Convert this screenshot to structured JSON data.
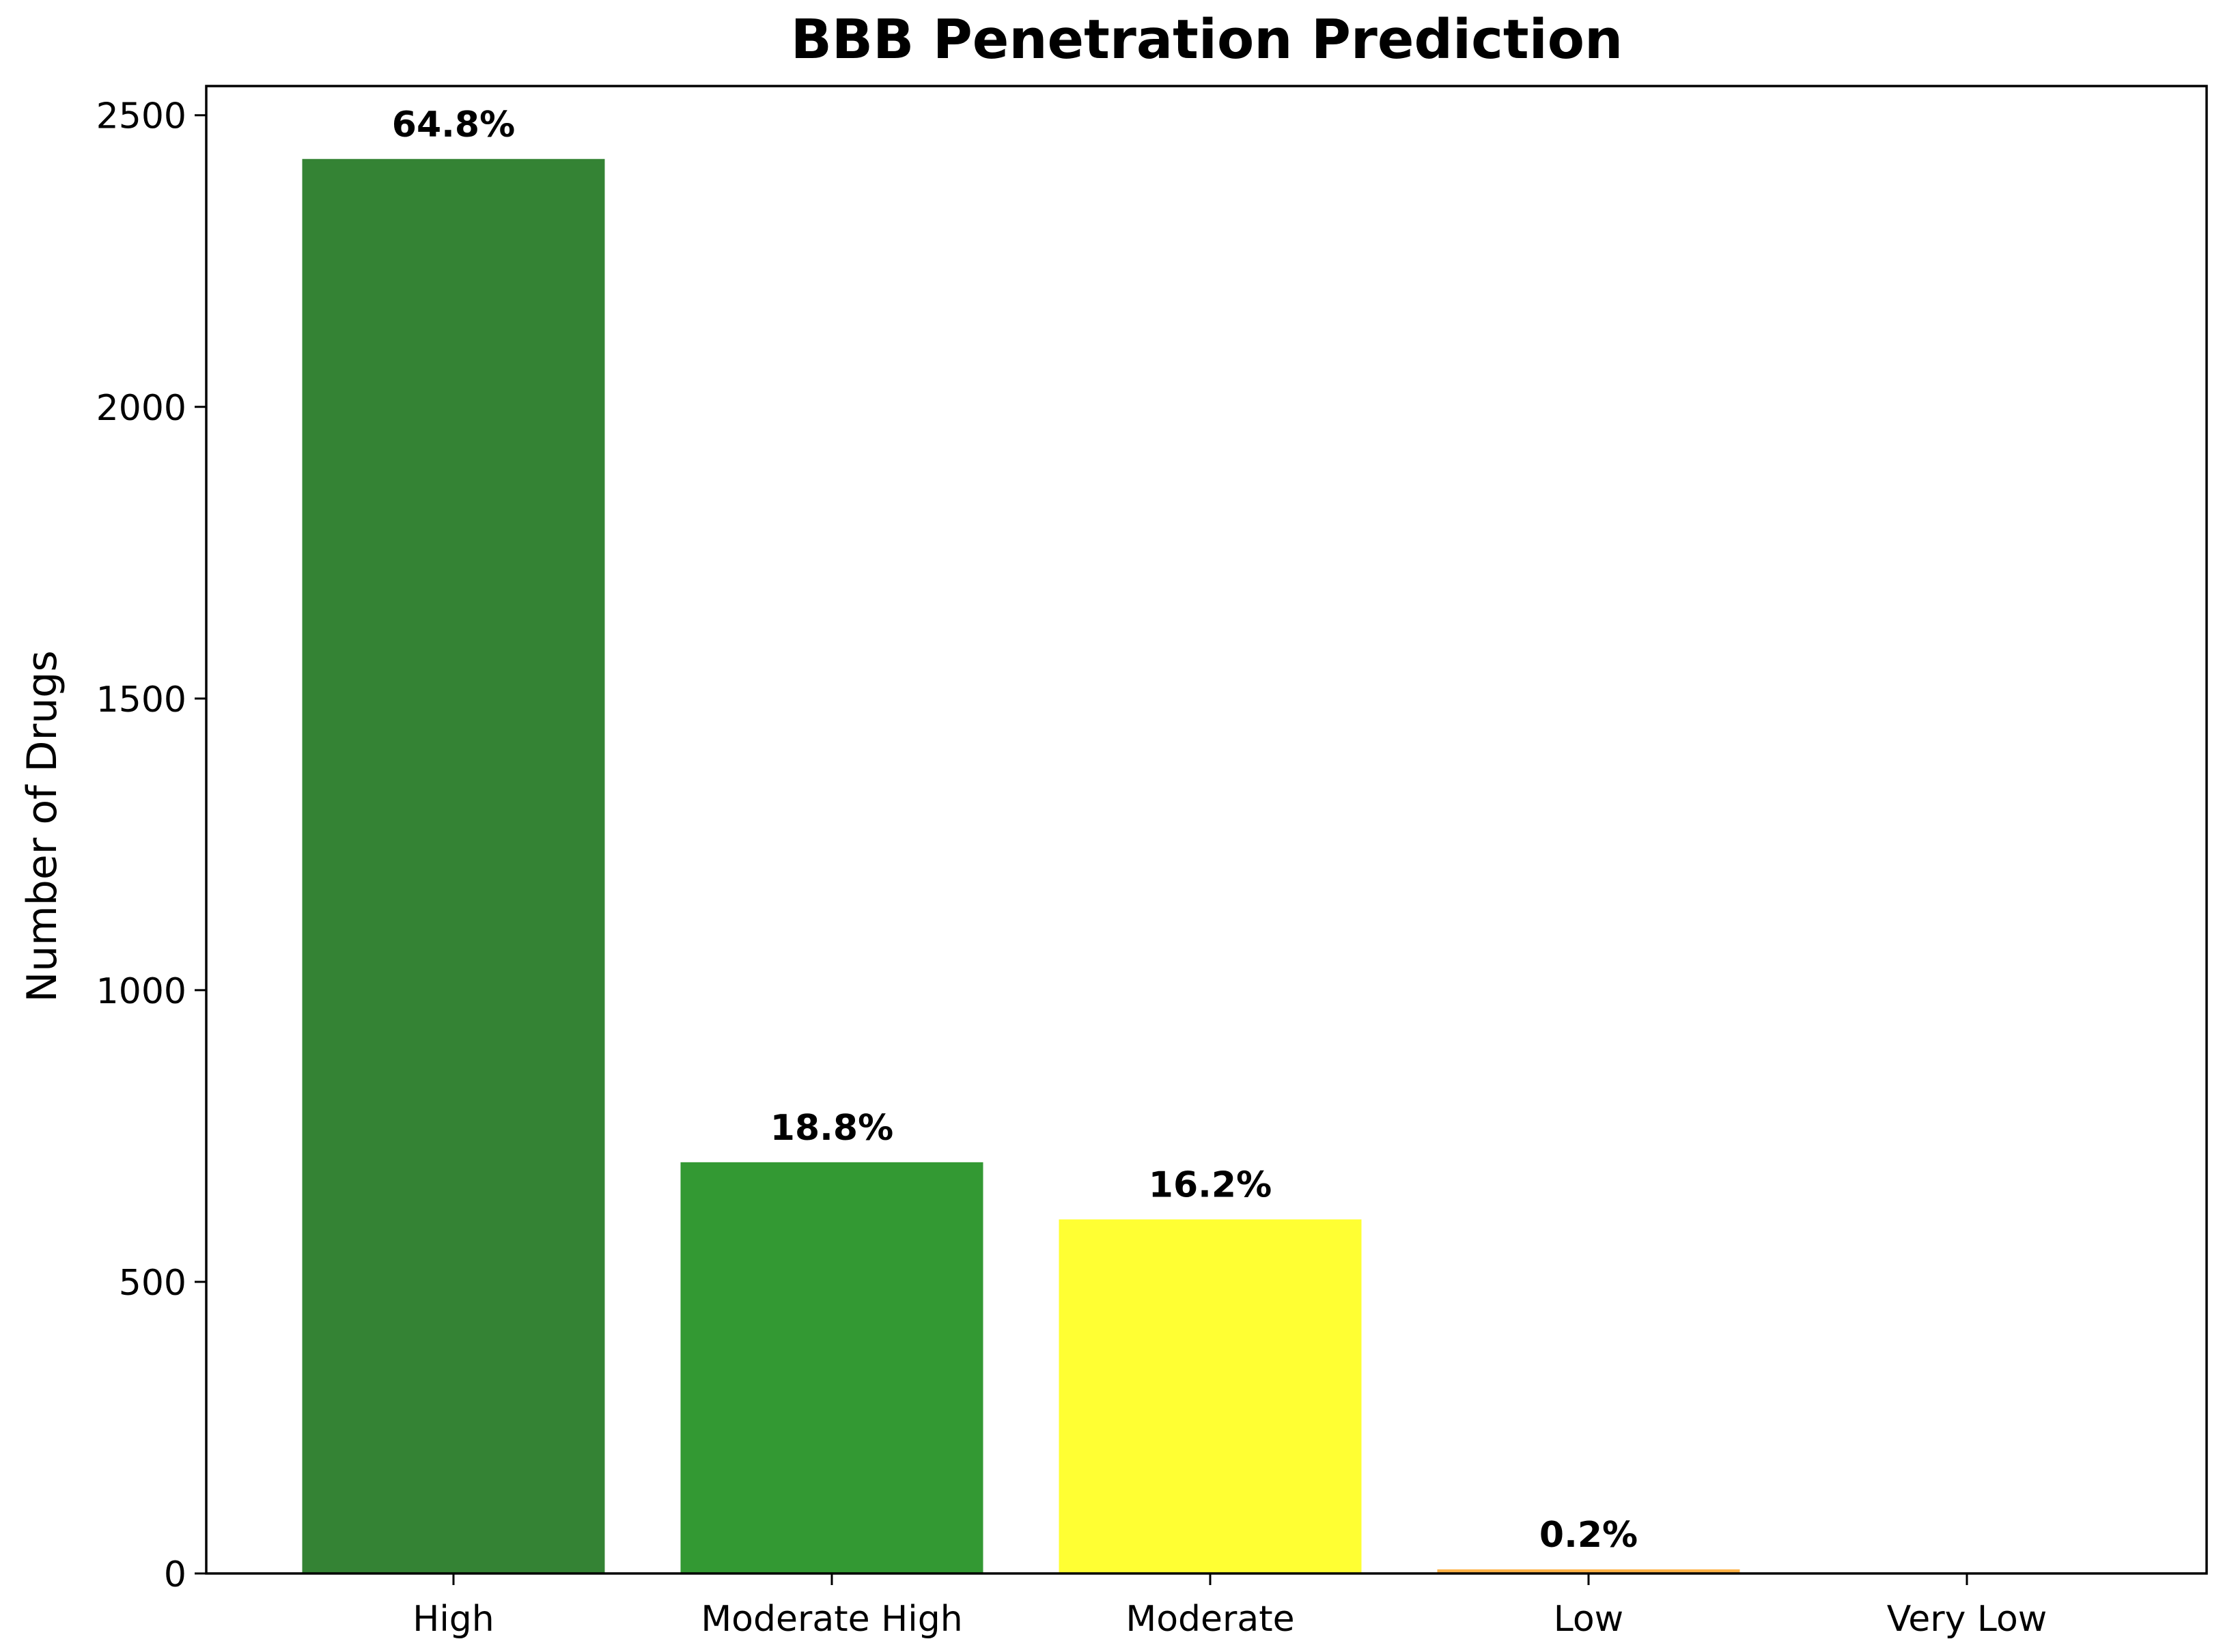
{
  "chart_data": {
    "type": "bar",
    "title": "BBB Penetration Prediction",
    "xlabel": "",
    "ylabel": "Number of Drugs",
    "categories": [
      "High",
      "Moderate High",
      "Moderate",
      "Low",
      "Very Low"
    ],
    "values": [
      2425,
      705,
      607,
      7,
      0
    ],
    "data_labels": [
      "64.8%",
      "18.8%",
      "16.2%",
      "0.2%",
      ""
    ],
    "colors": [
      "#348334",
      "#339933",
      "#ffff33",
      "#ffb347",
      "#ff6347"
    ],
    "ylim": [
      0,
      2550
    ],
    "yticks": [
      0,
      500,
      1000,
      1500,
      2000,
      2500
    ],
    "ytick_labels": [
      "0",
      "500",
      "1000",
      "1500",
      "2000",
      "2500"
    ],
    "grid": false,
    "legend": "none"
  }
}
